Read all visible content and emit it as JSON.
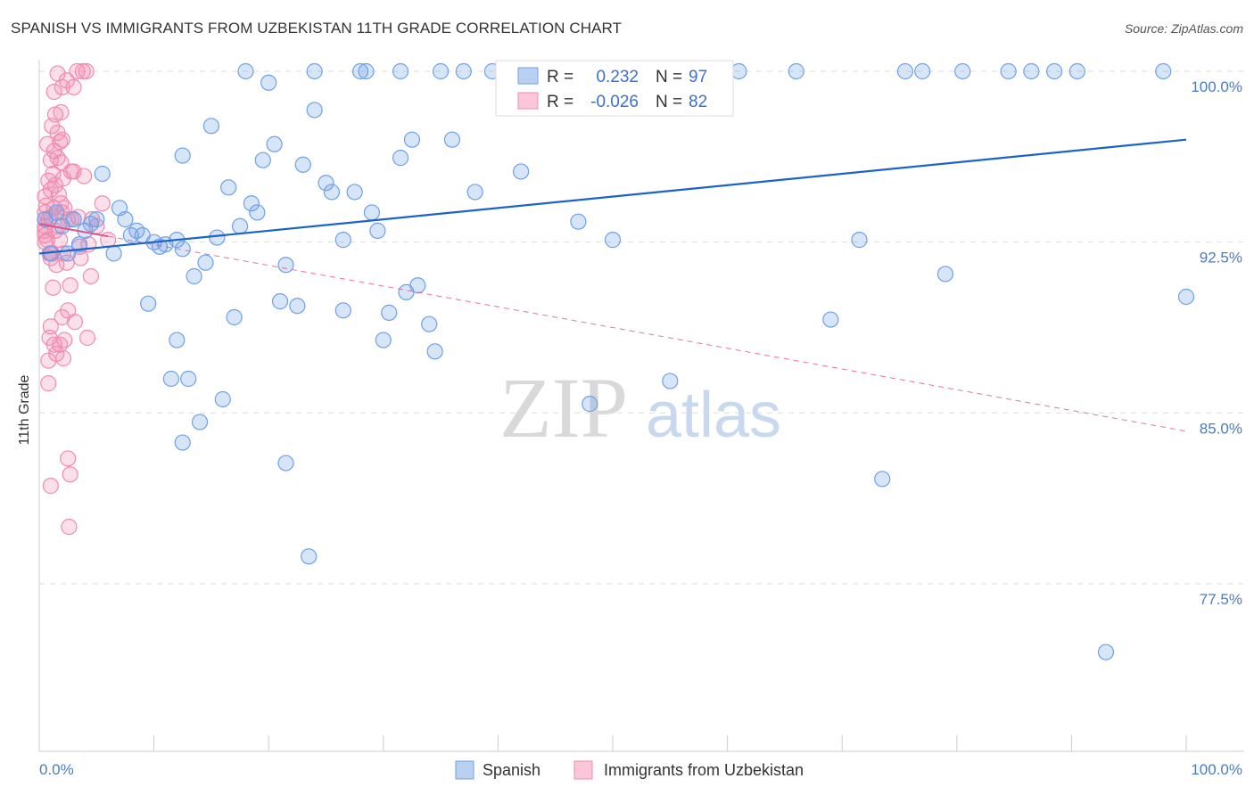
{
  "header": {
    "title": "SPANISH VS IMMIGRANTS FROM UZBEKISTAN 11TH GRADE CORRELATION CHART",
    "source": "Source: ZipAtlas.com"
  },
  "watermark": {
    "part1": "ZIP",
    "part2": "atlas"
  },
  "colors": {
    "spanish": "#6fa0e8",
    "spanish_line": "#1a63c8",
    "uzbek": "#f08cb0",
    "uzbek_line": "#e0508a",
    "axis_text": "#4a7cc4",
    "grid": "#dddddd"
  },
  "legend": {
    "rows": [
      {
        "r_label": "R =",
        "r_value": "0.232",
        "n_label": "N =",
        "n_value": "97"
      },
      {
        "r_label": "R =",
        "r_value": "-0.026",
        "n_label": "N =",
        "n_value": "82"
      }
    ]
  },
  "chart_data": {
    "type": "scatter",
    "title": "SPANISH VS IMMIGRANTS FROM UZBEKISTAN 11TH GRADE CORRELATION CHART",
    "xlabel": "",
    "ylabel": "11th Grade",
    "xlim": [
      0,
      100
    ],
    "ylim": [
      71.0,
      101.0
    ],
    "x_tick_labels": [
      "0.0%",
      "100.0%"
    ],
    "y_ticks": [
      77.5,
      85.0,
      92.5,
      100.0
    ],
    "y_tick_labels": [
      "77.5%",
      "85.0%",
      "92.5%",
      "100.0%"
    ],
    "grid": true,
    "legend_position": "top-center",
    "series": [
      {
        "name": "Spanish",
        "r": 0.232,
        "n": 97,
        "trend": {
          "x": [
            0,
            100
          ],
          "y": [
            92.0,
            97.0
          ],
          "style": "solid"
        },
        "points": [
          [
            0.5,
            93.5
          ],
          [
            1.0,
            92.0
          ],
          [
            1.5,
            93.8
          ],
          [
            2.0,
            93.2
          ],
          [
            2.5,
            92.0
          ],
          [
            3.0,
            93.5
          ],
          [
            3.5,
            92.4
          ],
          [
            4.0,
            93.0
          ],
          [
            4.5,
            93.3
          ],
          [
            5.0,
            93.5
          ],
          [
            5.5,
            95.5
          ],
          [
            6.5,
            92.0
          ],
          [
            7.0,
            94.0
          ],
          [
            7.5,
            93.5
          ],
          [
            8.0,
            92.8
          ],
          [
            8.5,
            93.0
          ],
          [
            9.0,
            92.8
          ],
          [
            9.5,
            89.8
          ],
          [
            10.0,
            92.5
          ],
          [
            10.5,
            92.3
          ],
          [
            11.0,
            92.4
          ],
          [
            12.0,
            92.6
          ],
          [
            12.5,
            92.2
          ],
          [
            11.5,
            86.5
          ],
          [
            12.0,
            88.2
          ],
          [
            12.5,
            96.3
          ],
          [
            12.5,
            83.7
          ],
          [
            13.0,
            86.5
          ],
          [
            13.5,
            91.0
          ],
          [
            14.0,
            84.6
          ],
          [
            14.5,
            91.6
          ],
          [
            15.0,
            97.6
          ],
          [
            15.5,
            92.7
          ],
          [
            16.0,
            85.6
          ],
          [
            16.5,
            94.9
          ],
          [
            17.0,
            89.2
          ],
          [
            17.5,
            93.2
          ],
          [
            18.0,
            100.0
          ],
          [
            18.5,
            94.2
          ],
          [
            19.0,
            93.8
          ],
          [
            19.5,
            96.1
          ],
          [
            20.0,
            99.5
          ],
          [
            20.5,
            96.8
          ],
          [
            21.0,
            89.9
          ],
          [
            21.5,
            82.8
          ],
          [
            21.5,
            91.5
          ],
          [
            22.5,
            89.7
          ],
          [
            23.0,
            95.9
          ],
          [
            23.5,
            78.7
          ],
          [
            24.0,
            100.0
          ],
          [
            24.0,
            98.3
          ],
          [
            25.0,
            95.1
          ],
          [
            25.5,
            94.7
          ],
          [
            26.5,
            92.6
          ],
          [
            26.5,
            89.5
          ],
          [
            27.5,
            94.7
          ],
          [
            28.0,
            100.0
          ],
          [
            28.5,
            100.0
          ],
          [
            29.0,
            93.8
          ],
          [
            29.5,
            93.0
          ],
          [
            30.0,
            88.2
          ],
          [
            30.5,
            89.4
          ],
          [
            31.5,
            100.0
          ],
          [
            31.5,
            96.2
          ],
          [
            32.0,
            90.3
          ],
          [
            32.5,
            97.0
          ],
          [
            33.0,
            90.6
          ],
          [
            34.0,
            88.9
          ],
          [
            34.5,
            87.7
          ],
          [
            35.0,
            100.0
          ],
          [
            36.0,
            97.0
          ],
          [
            37.0,
            100.0
          ],
          [
            38.0,
            94.7
          ],
          [
            39.5,
            100.0
          ],
          [
            42.0,
            95.6
          ],
          [
            46.0,
            100.0
          ],
          [
            47.0,
            93.4
          ],
          [
            48.0,
            85.4
          ],
          [
            50.0,
            92.6
          ],
          [
            54.0,
            100.0
          ],
          [
            55.0,
            86.4
          ],
          [
            61.0,
            100.0
          ],
          [
            66.0,
            100.0
          ],
          [
            69.0,
            89.1
          ],
          [
            71.5,
            92.6
          ],
          [
            73.5,
            82.1
          ],
          [
            75.5,
            100.0
          ],
          [
            77.0,
            100.0
          ],
          [
            79.0,
            91.1
          ],
          [
            80.5,
            100.0
          ],
          [
            84.5,
            100.0
          ],
          [
            86.5,
            100.0
          ],
          [
            88.5,
            100.0
          ],
          [
            90.5,
            100.0
          ],
          [
            93.0,
            74.5
          ],
          [
            98.0,
            100.0
          ],
          [
            100.0,
            90.1
          ]
        ]
      },
      {
        "name": "Immigrants from Uzbekistan",
        "r": -0.026,
        "n": 82,
        "trend": {
          "x": [
            0,
            100
          ],
          "y": [
            93.3,
            84.2
          ],
          "style": "dashed",
          "solid_until": 6.0
        },
        "points": [
          [
            0.5,
            93.2
          ],
          [
            0.5,
            92.5
          ],
          [
            0.5,
            94.5
          ],
          [
            0.5,
            93.8
          ],
          [
            0.5,
            93.0
          ],
          [
            0.5,
            92.8
          ],
          [
            0.5,
            93.5
          ],
          [
            0.6,
            94.1
          ],
          [
            0.7,
            92.6
          ],
          [
            0.7,
            96.8
          ],
          [
            0.8,
            95.2
          ],
          [
            0.8,
            93.5
          ],
          [
            0.8,
            86.3
          ],
          [
            0.8,
            87.3
          ],
          [
            0.9,
            88.3
          ],
          [
            0.9,
            92.0
          ],
          [
            1.0,
            96.1
          ],
          [
            1.0,
            94.8
          ],
          [
            1.0,
            93.6
          ],
          [
            1.0,
            91.8
          ],
          [
            1.0,
            81.8
          ],
          [
            1.0,
            88.8
          ],
          [
            1.1,
            97.6
          ],
          [
            1.1,
            92.0
          ],
          [
            1.2,
            95.5
          ],
          [
            1.2,
            90.5
          ],
          [
            1.3,
            99.1
          ],
          [
            1.3,
            96.5
          ],
          [
            1.3,
            94.0
          ],
          [
            1.3,
            88.0
          ],
          [
            1.4,
            98.1
          ],
          [
            1.4,
            95.0
          ],
          [
            1.4,
            93.0
          ],
          [
            1.5,
            91.5
          ],
          [
            1.5,
            87.6
          ],
          [
            1.6,
            99.9
          ],
          [
            1.6,
            97.3
          ],
          [
            1.6,
            96.2
          ],
          [
            1.7,
            94.6
          ],
          [
            1.7,
            93.2
          ],
          [
            1.8,
            96.9
          ],
          [
            1.8,
            92.6
          ],
          [
            1.8,
            88.0
          ],
          [
            1.9,
            98.2
          ],
          [
            1.9,
            96.0
          ],
          [
            1.9,
            94.2
          ],
          [
            2.0,
            99.3
          ],
          [
            2.0,
            97.0
          ],
          [
            2.0,
            93.8
          ],
          [
            2.0,
            89.2
          ],
          [
            2.1,
            95.3
          ],
          [
            2.1,
            92.0
          ],
          [
            2.1,
            87.4
          ],
          [
            2.2,
            94.0
          ],
          [
            2.2,
            88.2
          ],
          [
            2.4,
            99.6
          ],
          [
            2.4,
            91.6
          ],
          [
            2.5,
            93.5
          ],
          [
            2.5,
            89.5
          ],
          [
            2.5,
            83.0
          ],
          [
            2.6,
            80.0
          ],
          [
            2.7,
            90.6
          ],
          [
            2.7,
            82.3
          ],
          [
            2.8,
            95.6
          ],
          [
            2.8,
            93.5
          ],
          [
            3.0,
            99.3
          ],
          [
            3.0,
            95.6
          ],
          [
            3.1,
            89.0
          ],
          [
            3.3,
            100.0
          ],
          [
            3.4,
            93.6
          ],
          [
            3.5,
            92.3
          ],
          [
            3.6,
            91.8
          ],
          [
            3.8,
            100.0
          ],
          [
            3.9,
            95.4
          ],
          [
            4.1,
            100.0
          ],
          [
            4.2,
            88.3
          ],
          [
            4.3,
            92.4
          ],
          [
            4.5,
            91.0
          ],
          [
            4.6,
            93.5
          ],
          [
            5.0,
            93.2
          ],
          [
            5.5,
            94.2
          ],
          [
            6.0,
            92.6
          ]
        ]
      }
    ]
  },
  "bottom_legend": [
    {
      "label": "Spanish"
    },
    {
      "label": "Immigrants from Uzbekistan"
    }
  ]
}
